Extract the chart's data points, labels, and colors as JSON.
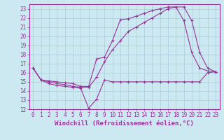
{
  "title": "",
  "xlabel": "Windchill (Refroidissement éolien,°C)",
  "ylabel": "",
  "bg_color": "#cce8f0",
  "grid_color": "#aaccdd",
  "line_color": "#993399",
  "xlim": [
    -0.5,
    23.5
  ],
  "ylim": [
    12,
    23.5
  ],
  "xticks": [
    0,
    1,
    2,
    3,
    4,
    5,
    6,
    7,
    8,
    9,
    10,
    11,
    12,
    13,
    14,
    15,
    16,
    17,
    18,
    19,
    20,
    21,
    22,
    23
  ],
  "yticks": [
    12,
    13,
    14,
    15,
    16,
    17,
    18,
    19,
    20,
    21,
    22,
    23
  ],
  "line1_x": [
    0,
    1,
    2,
    3,
    4,
    5,
    6,
    7,
    8,
    9,
    10,
    11,
    12,
    13,
    14,
    15,
    16,
    17,
    18,
    19,
    20,
    21,
    22,
    23
  ],
  "line1_y": [
    16.5,
    15.2,
    14.8,
    14.6,
    14.5,
    14.4,
    14.3,
    12.1,
    13.1,
    15.2,
    15.0,
    15.0,
    15.0,
    15.0,
    15.0,
    15.0,
    15.0,
    15.0,
    15.0,
    15.0,
    15.0,
    15.0,
    16.0,
    16.1
  ],
  "line2_x": [
    0,
    1,
    2,
    3,
    4,
    5,
    6,
    7,
    8,
    9,
    10,
    11,
    12,
    13,
    14,
    15,
    16,
    17,
    18,
    19,
    20,
    21,
    22,
    23
  ],
  "line2_y": [
    16.5,
    15.2,
    15.1,
    15.0,
    14.9,
    14.8,
    14.5,
    14.5,
    17.5,
    17.7,
    19.5,
    21.8,
    21.9,
    22.2,
    22.5,
    22.8,
    23.0,
    23.2,
    23.2,
    21.7,
    18.2,
    16.5,
    16.2,
    16.1
  ],
  "line3_x": [
    0,
    1,
    2,
    3,
    4,
    5,
    6,
    7,
    8,
    9,
    10,
    11,
    12,
    13,
    14,
    15,
    16,
    17,
    18,
    19,
    20,
    21,
    22,
    23
  ],
  "line3_y": [
    16.5,
    15.2,
    15.0,
    14.8,
    14.7,
    14.5,
    14.4,
    14.4,
    15.5,
    17.2,
    18.5,
    19.5,
    20.5,
    21.0,
    21.5,
    22.0,
    22.5,
    23.0,
    23.2,
    23.2,
    21.7,
    18.2,
    16.5,
    16.1
  ],
  "font_family": "monospace",
  "tick_fontsize": 5.5,
  "label_fontsize": 6.5
}
